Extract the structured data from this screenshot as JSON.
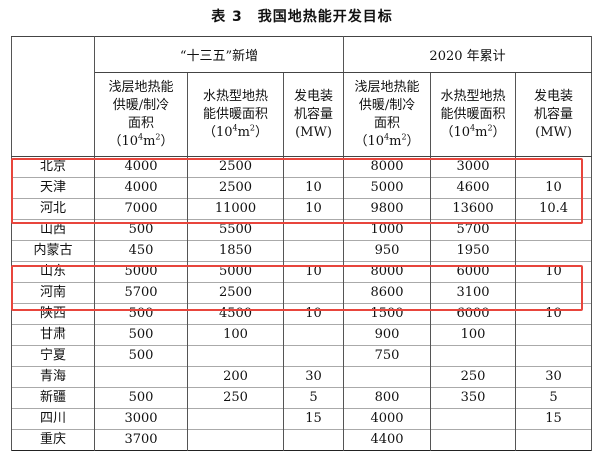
{
  "title": "表 3　我国地热能开发目标",
  "groups": {
    "plan": "“十三五”新增",
    "cumulative": "2020 年累计"
  },
  "columns": {
    "region": "",
    "shallow": [
      "浅层地热能",
      "供暖/制冷",
      "面积"
    ],
    "hydro": [
      "水热型地热",
      "能供暖面积"
    ],
    "power": [
      "发电装",
      "机容量",
      "(MW)"
    ],
    "area_unit_pre": "（10",
    "area_unit_exp1": "4",
    "area_unit_mid": "m",
    "area_unit_exp2": "2",
    "area_unit_post": "）"
  },
  "rows": [
    [
      "北京",
      "4000",
      "2500",
      "",
      "8000",
      "3000",
      ""
    ],
    [
      "天津",
      "4000",
      "2500",
      "10",
      "5000",
      "4600",
      "10"
    ],
    [
      "河北",
      "7000",
      "11000",
      "10",
      "9800",
      "13600",
      "10.4"
    ],
    [
      "山西",
      "500",
      "5500",
      "",
      "1000",
      "5700",
      ""
    ],
    [
      "内蒙古",
      "450",
      "1850",
      "",
      "950",
      "1950",
      ""
    ],
    [
      "山东",
      "5000",
      "5000",
      "10",
      "8000",
      "6000",
      "10"
    ],
    [
      "河南",
      "5700",
      "2500",
      "",
      "8600",
      "3100",
      ""
    ],
    [
      "陕西",
      "500",
      "4500",
      "10",
      "1500",
      "6000",
      "10"
    ],
    [
      "甘肃",
      "500",
      "100",
      "",
      "900",
      "100",
      ""
    ],
    [
      "宁夏",
      "500",
      "",
      "",
      "750",
      "",
      ""
    ],
    [
      "青海",
      "",
      "200",
      "30",
      "",
      "250",
      "30"
    ],
    [
      "新疆",
      "500",
      "250",
      "5",
      "800",
      "350",
      "5"
    ],
    [
      "四川",
      "3000",
      "",
      "15",
      "4000",
      "",
      "15"
    ],
    [
      "重庆",
      "3700",
      "",
      "",
      "4400",
      "",
      ""
    ]
  ],
  "highlight_color": "#e8453c"
}
